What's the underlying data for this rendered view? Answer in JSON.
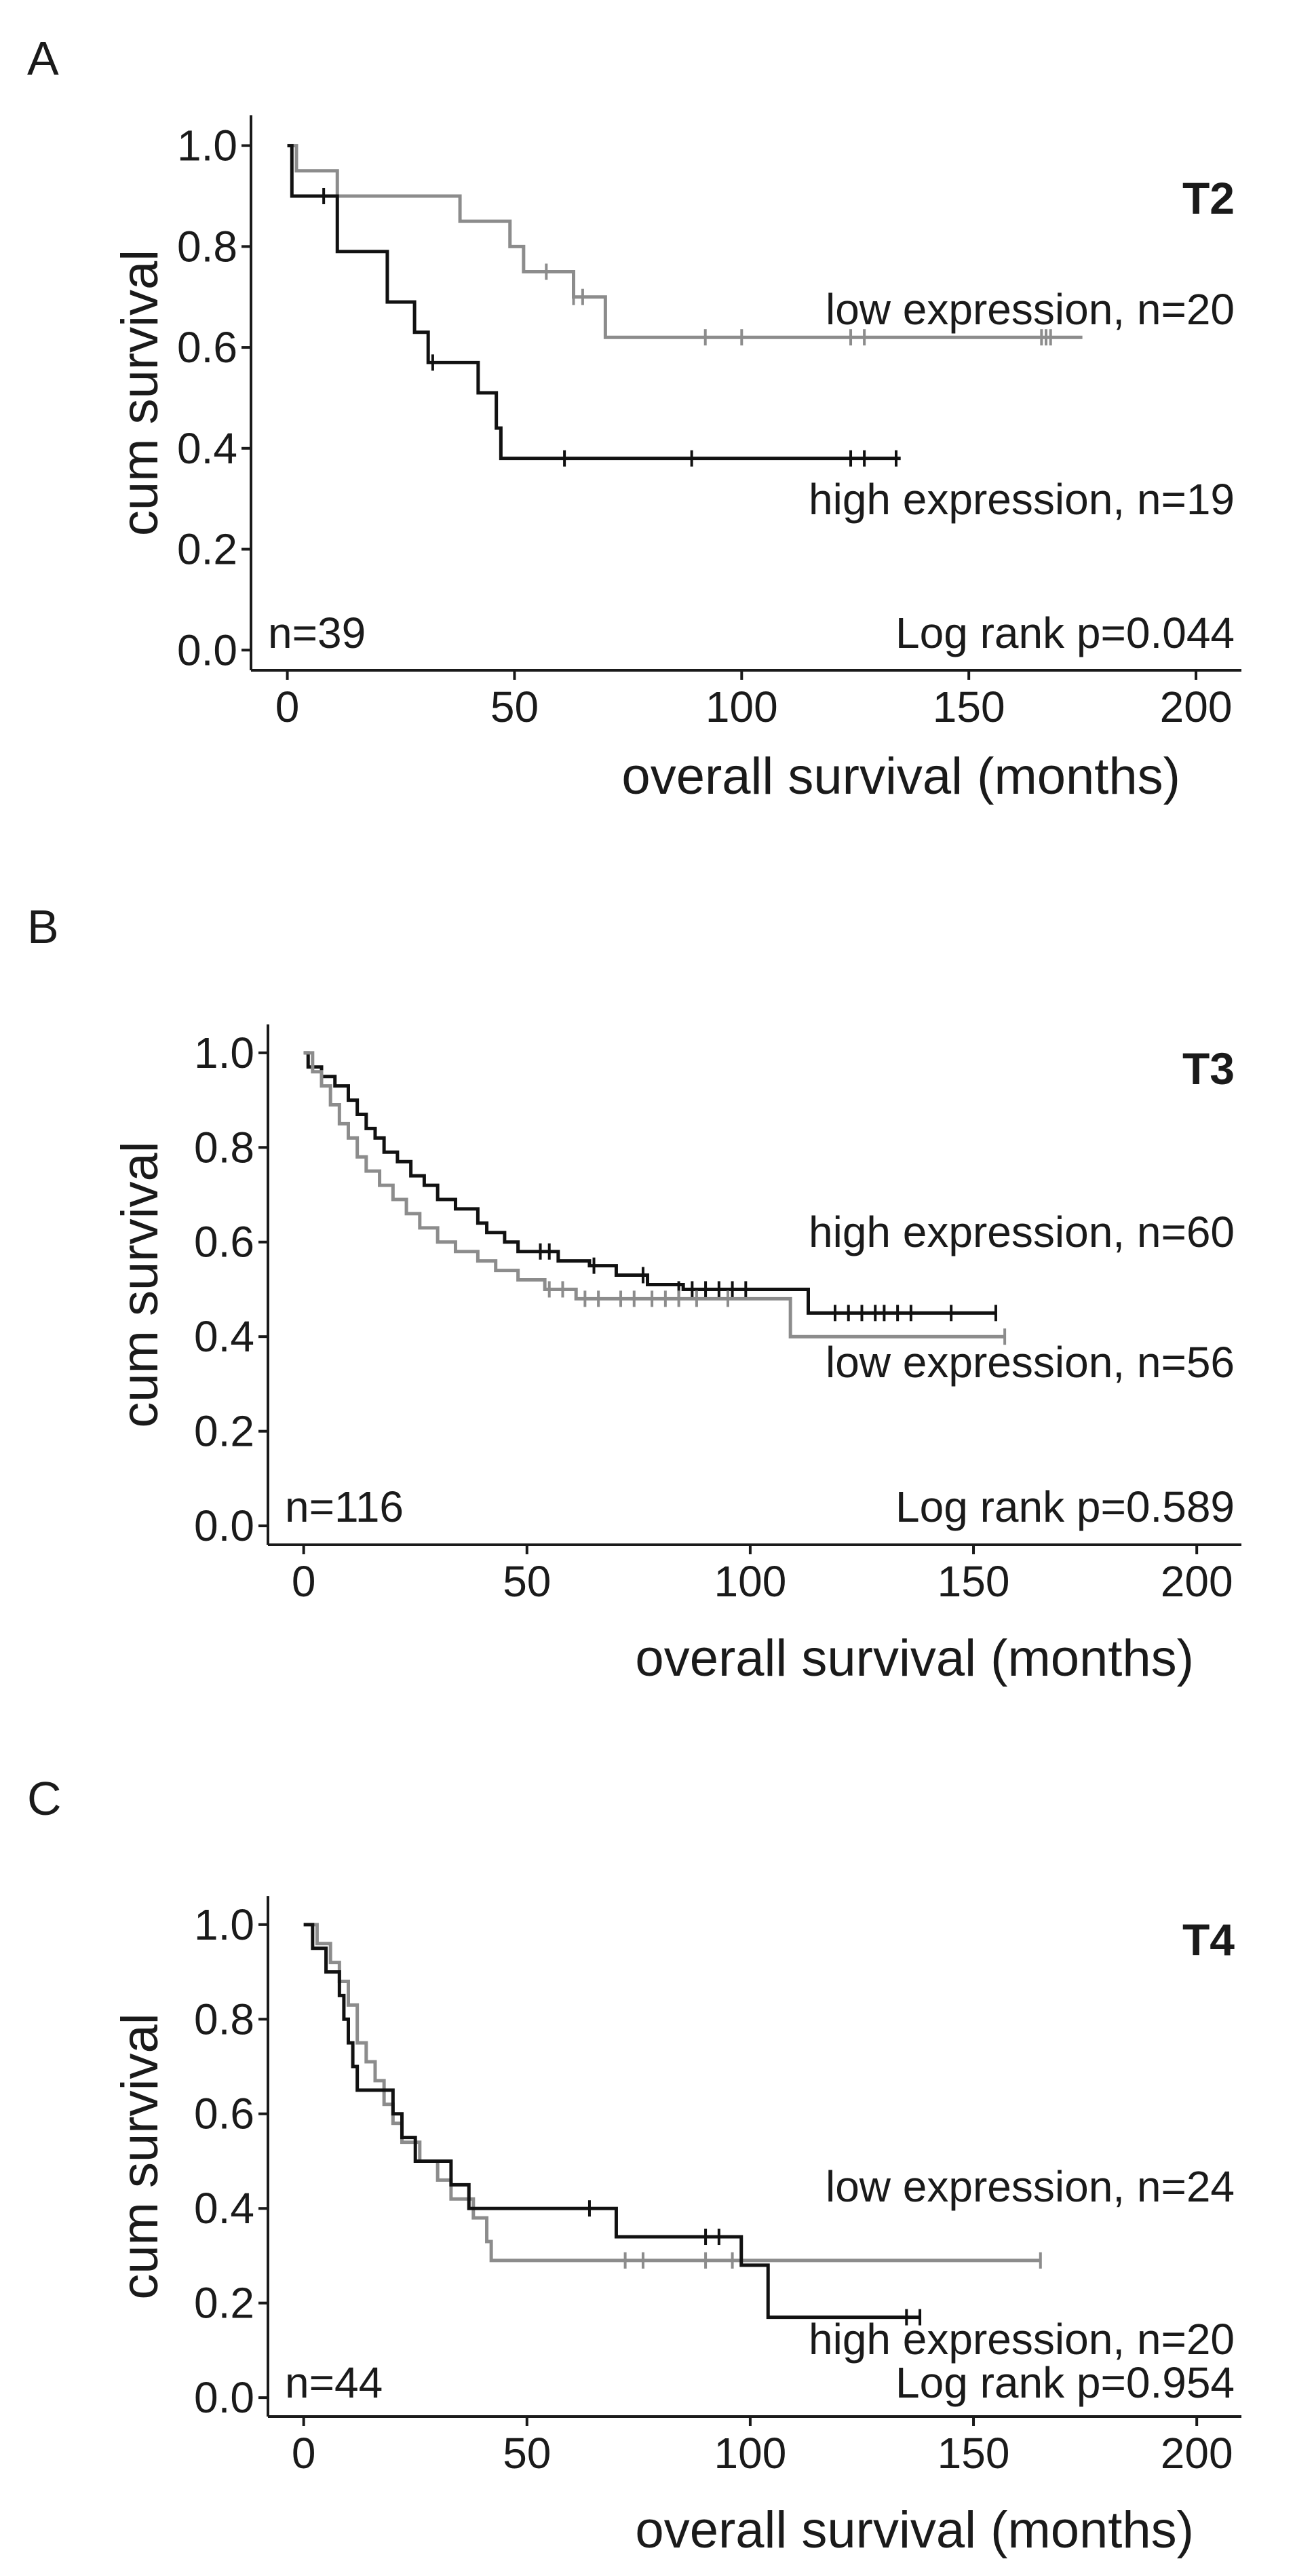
{
  "colors": {
    "high": "#111111",
    "low": "#8c8c8c"
  },
  "chart_data": [
    {
      "type": "line",
      "panel": "A",
      "title": "T2",
      "xlabel": "overall survival (months)",
      "ylabel": "cum survival",
      "xlim": [
        -8,
        210
      ],
      "ylim": [
        -0.04,
        1.06
      ],
      "xticks": [
        0,
        50,
        100,
        150,
        200
      ],
      "yticks": [
        0.0,
        0.2,
        0.4,
        0.6,
        0.8,
        1.0
      ],
      "xtick_labels": [
        "0",
        "50",
        "100",
        "150",
        "200"
      ],
      "ytick_labels": [
        "0.0",
        "0.2",
        "0.4",
        "0.6",
        "0.8",
        "1.0"
      ],
      "n_label": "n=39",
      "stat_label": "Log rank p=0.044",
      "series": [
        {
          "name": "low expression",
          "label": "low expression, n=20",
          "color_key": "low",
          "steps": [
            [
              0,
              1.0
            ],
            [
              2,
              0.95
            ],
            [
              10,
              0.95
            ],
            [
              11,
              0.9
            ],
            [
              37,
              0.9
            ],
            [
              38,
              0.85
            ],
            [
              48,
              0.85
            ],
            [
              49,
              0.8
            ],
            [
              51,
              0.8
            ],
            [
              52,
              0.75
            ],
            [
              62,
              0.75
            ],
            [
              63,
              0.7
            ],
            [
              68,
              0.7
            ],
            [
              70,
              0.62
            ],
            [
              175,
              0.62
            ]
          ],
          "censor": [
            [
              57,
              0.75
            ],
            [
              63,
              0.7
            ],
            [
              65,
              0.7
            ],
            [
              92,
              0.62
            ],
            [
              100,
              0.62
            ],
            [
              124,
              0.62
            ],
            [
              127,
              0.62
            ],
            [
              166,
              0.62
            ],
            [
              167,
              0.62
            ],
            [
              168,
              0.62
            ]
          ]
        },
        {
          "name": "high expression",
          "label": "high expression, n=19",
          "color_key": "high",
          "steps": [
            [
              0,
              1.0
            ],
            [
              1,
              0.9
            ],
            [
              10,
              0.9
            ],
            [
              11,
              0.79
            ],
            [
              21,
              0.79
            ],
            [
              22,
              0.69
            ],
            [
              27,
              0.69
            ],
            [
              28,
              0.63
            ],
            [
              30,
              0.63
            ],
            [
              31,
              0.57
            ],
            [
              41,
              0.57
            ],
            [
              42,
              0.51
            ],
            [
              45,
              0.51
            ],
            [
              46,
              0.44
            ],
            [
              47,
              0.38
            ],
            [
              135,
              0.38
            ]
          ],
          "censor": [
            [
              8,
              0.9
            ],
            [
              32,
              0.57
            ],
            [
              61,
              0.38
            ],
            [
              89,
              0.38
            ],
            [
              124,
              0.38
            ],
            [
              127,
              0.38
            ],
            [
              134,
              0.38
            ]
          ]
        }
      ]
    },
    {
      "type": "line",
      "panel": "B",
      "title": "T3",
      "xlabel": "overall survival (months)",
      "ylabel": "cum survival",
      "xlim": [
        -8,
        210
      ],
      "ylim": [
        -0.04,
        1.06
      ],
      "xticks": [
        0,
        50,
        100,
        150,
        200
      ],
      "yticks": [
        0.0,
        0.2,
        0.4,
        0.6,
        0.8,
        1.0
      ],
      "xtick_labels": [
        "0",
        "50",
        "100",
        "150",
        "200"
      ],
      "ytick_labels": [
        "0.0",
        "0.2",
        "0.4",
        "0.6",
        "0.8",
        "1.0"
      ],
      "n_label": "n=116",
      "stat_label": "Log rank p=0.589",
      "series": [
        {
          "name": "high expression",
          "label": "high expression, n=60",
          "color_key": "high",
          "steps": [
            [
              0,
              1.0
            ],
            [
              1,
              0.97
            ],
            [
              4,
              0.95
            ],
            [
              7,
              0.93
            ],
            [
              10,
              0.9
            ],
            [
              12,
              0.87
            ],
            [
              14,
              0.84
            ],
            [
              16,
              0.82
            ],
            [
              18,
              0.79
            ],
            [
              21,
              0.77
            ],
            [
              24,
              0.74
            ],
            [
              27,
              0.72
            ],
            [
              30,
              0.69
            ],
            [
              34,
              0.67
            ],
            [
              39,
              0.64
            ],
            [
              41,
              0.62
            ],
            [
              45,
              0.6
            ],
            [
              48,
              0.58
            ],
            [
              57,
              0.56
            ],
            [
              64,
              0.55
            ],
            [
              70,
              0.53
            ],
            [
              77,
              0.51
            ],
            [
              85,
              0.5
            ],
            [
              112,
              0.5
            ],
            [
              113,
              0.45
            ],
            [
              155,
              0.45
            ]
          ],
          "censor": [
            [
              53,
              0.58
            ],
            [
              55,
              0.58
            ],
            [
              65,
              0.55
            ],
            [
              76,
              0.53
            ],
            [
              84,
              0.5
            ],
            [
              87,
              0.5
            ],
            [
              90,
              0.5
            ],
            [
              93,
              0.5
            ],
            [
              96,
              0.5
            ],
            [
              99,
              0.5
            ],
            [
              119,
              0.45
            ],
            [
              122,
              0.45
            ],
            [
              125,
              0.45
            ],
            [
              128,
              0.45
            ],
            [
              130,
              0.45
            ],
            [
              133,
              0.45
            ],
            [
              136,
              0.45
            ],
            [
              145,
              0.45
            ],
            [
              155,
              0.45
            ]
          ]
        },
        {
          "name": "low expression",
          "label": "low expression, n=56",
          "color_key": "low",
          "steps": [
            [
              0,
              1.0
            ],
            [
              2,
              0.96
            ],
            [
              4,
              0.93
            ],
            [
              6,
              0.89
            ],
            [
              8,
              0.85
            ],
            [
              10,
              0.82
            ],
            [
              12,
              0.78
            ],
            [
              14,
              0.75
            ],
            [
              17,
              0.72
            ],
            [
              20,
              0.69
            ],
            [
              23,
              0.66
            ],
            [
              26,
              0.63
            ],
            [
              30,
              0.6
            ],
            [
              34,
              0.58
            ],
            [
              39,
              0.56
            ],
            [
              43,
              0.54
            ],
            [
              48,
              0.52
            ],
            [
              54,
              0.5
            ],
            [
              61,
              0.48
            ],
            [
              108,
              0.48
            ],
            [
              109,
              0.4
            ],
            [
              157,
              0.4
            ]
          ],
          "censor": [
            [
              55,
              0.5
            ],
            [
              58,
              0.5
            ],
            [
              63,
              0.48
            ],
            [
              66,
              0.48
            ],
            [
              71,
              0.48
            ],
            [
              74,
              0.48
            ],
            [
              78,
              0.48
            ],
            [
              81,
              0.48
            ],
            [
              84,
              0.48
            ],
            [
              88,
              0.48
            ],
            [
              95,
              0.48
            ],
            [
              157,
              0.4
            ]
          ]
        }
      ]
    },
    {
      "type": "line",
      "panel": "C",
      "title": "T4",
      "xlabel": "overall survival (months)",
      "ylabel": "cum survival",
      "xlim": [
        -8,
        210
      ],
      "ylim": [
        -0.04,
        1.06
      ],
      "xticks": [
        0,
        50,
        100,
        150,
        200
      ],
      "yticks": [
        0.0,
        0.2,
        0.4,
        0.6,
        0.8,
        1.0
      ],
      "xtick_labels": [
        "0",
        "50",
        "100",
        "150",
        "200"
      ],
      "ytick_labels": [
        "0.0",
        "0.2",
        "0.4",
        "0.6",
        "0.8",
        "1.0"
      ],
      "n_label": "n=44",
      "stat_label": "Log rank p=0.954",
      "series": [
        {
          "name": "low expression",
          "label": "low expression, n=24",
          "color_key": "low",
          "steps": [
            [
              0,
              1.0
            ],
            [
              3,
              0.96
            ],
            [
              6,
              0.92
            ],
            [
              8,
              0.88
            ],
            [
              10,
              0.83
            ],
            [
              12,
              0.75
            ],
            [
              14,
              0.71
            ],
            [
              16,
              0.67
            ],
            [
              18,
              0.62
            ],
            [
              20,
              0.58
            ],
            [
              22,
              0.54
            ],
            [
              26,
              0.5
            ],
            [
              30,
              0.46
            ],
            [
              33,
              0.42
            ],
            [
              38,
              0.38
            ],
            [
              41,
              0.33
            ],
            [
              42,
              0.29
            ],
            [
              165,
              0.29
            ]
          ],
          "censor": [
            [
              72,
              0.29
            ],
            [
              76,
              0.29
            ],
            [
              90,
              0.29
            ],
            [
              96,
              0.29
            ],
            [
              165,
              0.29
            ]
          ]
        },
        {
          "name": "high expression",
          "label": "high expression, n=20",
          "color_key": "high",
          "steps": [
            [
              0,
              1.0
            ],
            [
              2,
              0.95
            ],
            [
              5,
              0.9
            ],
            [
              8,
              0.85
            ],
            [
              9,
              0.8
            ],
            [
              10,
              0.75
            ],
            [
              11,
              0.7
            ],
            [
              12,
              0.65
            ],
            [
              20,
              0.6
            ],
            [
              22,
              0.55
            ],
            [
              25,
              0.5
            ],
            [
              33,
              0.45
            ],
            [
              37,
              0.4
            ],
            [
              66,
              0.4
            ],
            [
              70,
              0.34
            ],
            [
              97,
              0.34
            ],
            [
              98,
              0.28
            ],
            [
              103,
              0.28
            ],
            [
              104,
              0.17
            ],
            [
              138,
              0.17
            ]
          ],
          "censor": [
            [
              64,
              0.4
            ],
            [
              90,
              0.34
            ],
            [
              93,
              0.34
            ],
            [
              135,
              0.17
            ],
            [
              138,
              0.17
            ]
          ]
        }
      ]
    }
  ]
}
